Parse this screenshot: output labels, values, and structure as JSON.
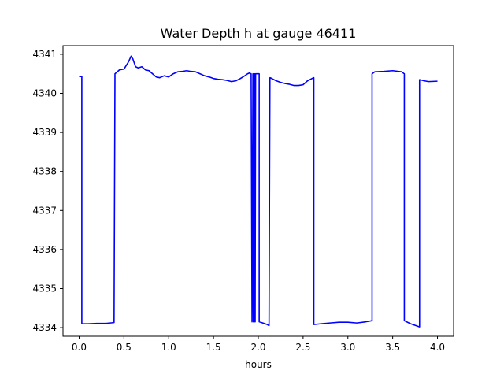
{
  "chart_data": {
    "type": "line",
    "title": "Water Depth h at gauge 46411",
    "xlabel": "hours",
    "ylabel": "",
    "xlim": [
      -0.18,
      4.18
    ],
    "ylim": [
      4333.78,
      4341.22
    ],
    "xticks": [
      0.0,
      0.5,
      1.0,
      1.5,
      2.0,
      2.5,
      3.0,
      3.5,
      4.0
    ],
    "xtick_labels": [
      "0.0",
      "0.5",
      "1.0",
      "1.5",
      "2.0",
      "2.5",
      "3.0",
      "3.5",
      "4.0"
    ],
    "yticks": [
      4334,
      4335,
      4336,
      4337,
      4338,
      4339,
      4340,
      4341
    ],
    "ytick_labels": [
      "4334",
      "4335",
      "4336",
      "4337",
      "4338",
      "4339",
      "4340",
      "4341"
    ],
    "grid": false,
    "color": "#0000ff",
    "series": [
      {
        "x": [
          0.0,
          0.03,
          0.03,
          0.1,
          0.2,
          0.3,
          0.39,
          0.4,
          0.4,
          0.45,
          0.5,
          0.55,
          0.58,
          0.6,
          0.63,
          0.66,
          0.7,
          0.74,
          0.78,
          0.82,
          0.86,
          0.9,
          0.95,
          1.0,
          1.05,
          1.1,
          1.15,
          1.2,
          1.25,
          1.3,
          1.35,
          1.4,
          1.45,
          1.5,
          1.55,
          1.6,
          1.65,
          1.7,
          1.75,
          1.8,
          1.85,
          1.88,
          1.9,
          1.92,
          1.93,
          1.94,
          1.945,
          1.95,
          1.955,
          1.96,
          1.965,
          1.97,
          1.98,
          1.99,
          2.0,
          2.01,
          2.01,
          2.05,
          2.1,
          2.12,
          2.13,
          2.15,
          2.2,
          2.25,
          2.3,
          2.35,
          2.4,
          2.45,
          2.5,
          2.55,
          2.6,
          2.62,
          2.62,
          2.7,
          2.8,
          2.9,
          3.0,
          3.1,
          3.2,
          3.27,
          3.27,
          3.3,
          3.4,
          3.5,
          3.6,
          3.63,
          3.63,
          3.7,
          3.8,
          3.8,
          3.85,
          3.9,
          4.0
        ],
        "y": [
          4340.43,
          4340.43,
          4334.1,
          4334.1,
          4334.11,
          4334.11,
          4334.13,
          4340.45,
          4340.5,
          4340.6,
          4340.62,
          4340.8,
          4340.95,
          4340.88,
          4340.68,
          4340.65,
          4340.68,
          4340.6,
          4340.58,
          4340.5,
          4340.42,
          4340.4,
          4340.45,
          4340.42,
          4340.5,
          4340.55,
          4340.56,
          4340.58,
          4340.56,
          4340.55,
          4340.5,
          4340.45,
          4340.42,
          4340.38,
          4340.36,
          4340.35,
          4340.33,
          4340.3,
          4340.32,
          4340.38,
          4340.45,
          4340.5,
          4340.52,
          4340.5,
          4334.15,
          4340.5,
          4334.15,
          4340.5,
          4334.15,
          4340.5,
          4334.15,
          4340.5,
          4340.5,
          4340.5,
          4340.5,
          4340.5,
          4334.15,
          4334.12,
          4334.08,
          4334.05,
          4340.4,
          4340.38,
          4340.32,
          4340.28,
          4340.25,
          4340.23,
          4340.2,
          4340.2,
          4340.22,
          4340.32,
          4340.38,
          4340.4,
          4334.08,
          4334.1,
          4334.12,
          4334.14,
          4334.14,
          4334.12,
          4334.15,
          4334.18,
          4340.5,
          4340.55,
          4340.56,
          4340.58,
          4340.55,
          4340.5,
          4334.18,
          4334.1,
          4334.02,
          4340.35,
          4340.32,
          4340.3,
          4340.31
        ]
      }
    ]
  }
}
